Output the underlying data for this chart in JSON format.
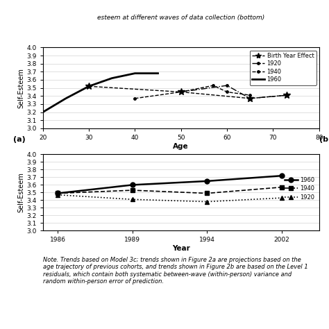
{
  "top_chart": {
    "xlabel": "Age",
    "ylabel": "Self-Esteem",
    "xlim": [
      20,
      80
    ],
    "ylim": [
      3.0,
      4.0
    ],
    "yticks": [
      3.0,
      3.1,
      3.2,
      3.3,
      3.4,
      3.5,
      3.6,
      3.7,
      3.8,
      3.9,
      4.0
    ],
    "xticks": [
      20,
      30,
      40,
      50,
      60,
      70,
      80
    ],
    "birth_year_effect": {
      "x": [
        30,
        50,
        65,
        73
      ],
      "y": [
        3.52,
        3.45,
        3.37,
        3.41
      ]
    },
    "cohort_1920": {
      "x": [
        50,
        60,
        65,
        73
      ],
      "y": [
        3.45,
        3.53,
        3.37,
        3.41
      ]
    },
    "cohort_1940": {
      "x": [
        40,
        50,
        57,
        60,
        65
      ],
      "y": [
        3.37,
        3.45,
        3.53,
        3.45,
        3.41
      ]
    },
    "cohort_1960": {
      "x": [
        20,
        25,
        30,
        35,
        40,
        45
      ],
      "y": [
        3.2,
        3.37,
        3.52,
        3.62,
        3.68,
        3.68
      ]
    }
  },
  "bottom_chart": {
    "xlabel": "Year",
    "ylabel": "Self-Esteem",
    "xlim_labels": [
      "1986",
      "1989",
      "1994",
      "2002"
    ],
    "ylim": [
      3.0,
      4.0
    ],
    "yticks": [
      3.0,
      3.1,
      3.2,
      3.3,
      3.4,
      3.5,
      3.6,
      3.7,
      3.8,
      3.9,
      4.0
    ],
    "cohort_1960": {
      "x": [
        0,
        1,
        2,
        3
      ],
      "y": [
        3.49,
        3.6,
        3.65,
        3.72
      ]
    },
    "cohort_1940": {
      "x": [
        0,
        1,
        2,
        3
      ],
      "y": [
        3.49,
        3.53,
        3.49,
        3.57
      ]
    },
    "cohort_1920": {
      "x": [
        0,
        1,
        2,
        3
      ],
      "y": [
        3.47,
        3.41,
        3.38,
        3.43
      ]
    }
  },
  "header_text": "esteem at different waves of data collection (bottom)",
  "note_text": "Note. Trends based on Model 3c; trends shown in Figure 2a are projections based on the\nage trajectory of previous cohorts, and trends shown in Figure 2b are based on the Level 1\nresiduals, which contain both systematic between-wave (within-person) variance and\nrandom within-person error of prediction."
}
